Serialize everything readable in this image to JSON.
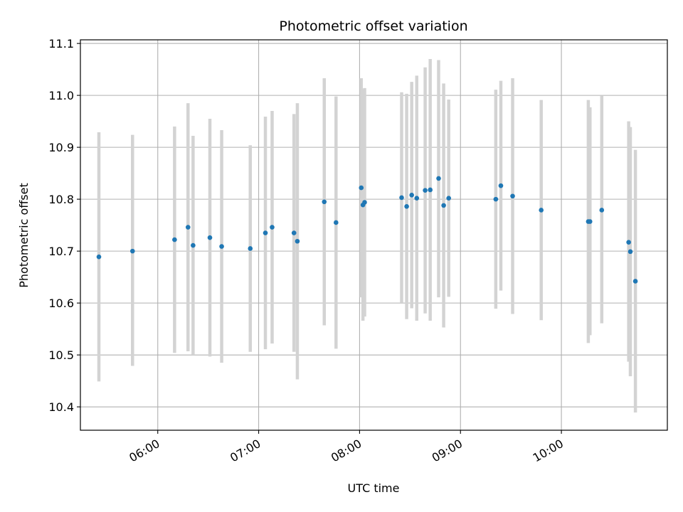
{
  "chart_data": {
    "type": "scatter",
    "title": "Photometric offset variation",
    "xlabel": "UTC time",
    "ylabel": "Photometric offset",
    "x_ticks": [
      "06:00",
      "07:00",
      "08:00",
      "09:00",
      "10:00"
    ],
    "y_ticks": [
      "10.4",
      "10.5",
      "10.6",
      "10.7",
      "10.8",
      "10.9",
      "11.0",
      "11.1"
    ],
    "xlim": [
      "05:14",
      "11:03"
    ],
    "ylim": [
      10.355,
      11.107
    ],
    "grid": true,
    "colors": {
      "point": "#1f77b4",
      "errorbar": "#d3d3d3",
      "grid": "#b0b0b0",
      "axis": "#000000"
    },
    "points": [
      {
        "x": "05:25",
        "y": 10.689,
        "ylo": 10.449,
        "yhi": 10.929
      },
      {
        "x": "05:45",
        "y": 10.7,
        "ylo": 10.479,
        "yhi": 10.924
      },
      {
        "x": "06:10",
        "y": 10.722,
        "ylo": 10.504,
        "yhi": 10.94
      },
      {
        "x": "06:18",
        "y": 10.746,
        "ylo": 10.507,
        "yhi": 10.985
      },
      {
        "x": "06:21",
        "y": 10.711,
        "ylo": 10.5,
        "yhi": 10.922
      },
      {
        "x": "06:31",
        "y": 10.726,
        "ylo": 10.497,
        "yhi": 10.955
      },
      {
        "x": "06:38",
        "y": 10.709,
        "ylo": 10.485,
        "yhi": 10.933
      },
      {
        "x": "06:55",
        "y": 10.705,
        "ylo": 10.506,
        "yhi": 10.904
      },
      {
        "x": "07:04",
        "y": 10.735,
        "ylo": 10.511,
        "yhi": 10.959
      },
      {
        "x": "07:08",
        "y": 10.746,
        "ylo": 10.522,
        "yhi": 10.97
      },
      {
        "x": "07:21",
        "y": 10.735,
        "ylo": 10.506,
        "yhi": 10.964
      },
      {
        "x": "07:23",
        "y": 10.719,
        "ylo": 10.453,
        "yhi": 10.985
      },
      {
        "x": "07:39",
        "y": 10.795,
        "ylo": 10.557,
        "yhi": 11.033
      },
      {
        "x": "07:46",
        "y": 10.755,
        "ylo": 10.512,
        "yhi": 10.998
      },
      {
        "x": "08:01",
        "y": 10.822,
        "ylo": 10.611,
        "yhi": 11.033
      },
      {
        "x": "08:02",
        "y": 10.789,
        "ylo": 10.566,
        "yhi": 11.012
      },
      {
        "x": "08:03",
        "y": 10.794,
        "ylo": 10.574,
        "yhi": 11.014
      },
      {
        "x": "08:25",
        "y": 10.803,
        "ylo": 10.601,
        "yhi": 11.006
      },
      {
        "x": "08:28",
        "y": 10.786,
        "ylo": 10.569,
        "yhi": 11.003
      },
      {
        "x": "08:31",
        "y": 10.808,
        "ylo": 10.59,
        "yhi": 11.026
      },
      {
        "x": "08:34",
        "y": 10.802,
        "ylo": 10.566,
        "yhi": 11.038
      },
      {
        "x": "08:39",
        "y": 10.817,
        "ylo": 10.58,
        "yhi": 11.054
      },
      {
        "x": "08:42",
        "y": 10.818,
        "ylo": 10.566,
        "yhi": 11.07
      },
      {
        "x": "08:47",
        "y": 10.84,
        "ylo": 10.611,
        "yhi": 11.068
      },
      {
        "x": "08:50",
        "y": 10.788,
        "ylo": 10.553,
        "yhi": 11.023
      },
      {
        "x": "08:53",
        "y": 10.802,
        "ylo": 10.612,
        "yhi": 10.992
      },
      {
        "x": "09:21",
        "y": 10.8,
        "ylo": 10.589,
        "yhi": 11.011
      },
      {
        "x": "09:24",
        "y": 10.826,
        "ylo": 10.624,
        "yhi": 11.028
      },
      {
        "x": "09:31",
        "y": 10.806,
        "ylo": 10.579,
        "yhi": 11.033
      },
      {
        "x": "09:48",
        "y": 10.779,
        "ylo": 10.567,
        "yhi": 10.991
      },
      {
        "x": "10:16",
        "y": 10.757,
        "ylo": 10.523,
        "yhi": 10.991
      },
      {
        "x": "10:17",
        "y": 10.757,
        "ylo": 10.538,
        "yhi": 10.977
      },
      {
        "x": "10:24",
        "y": 10.779,
        "ylo": 10.561,
        "yhi": 10.999
      },
      {
        "x": "10:40",
        "y": 10.717,
        "ylo": 10.487,
        "yhi": 10.95
      },
      {
        "x": "10:41",
        "y": 10.699,
        "ylo": 10.459,
        "yhi": 10.939
      },
      {
        "x": "10:44",
        "y": 10.642,
        "ylo": 10.389,
        "yhi": 10.895
      }
    ]
  }
}
